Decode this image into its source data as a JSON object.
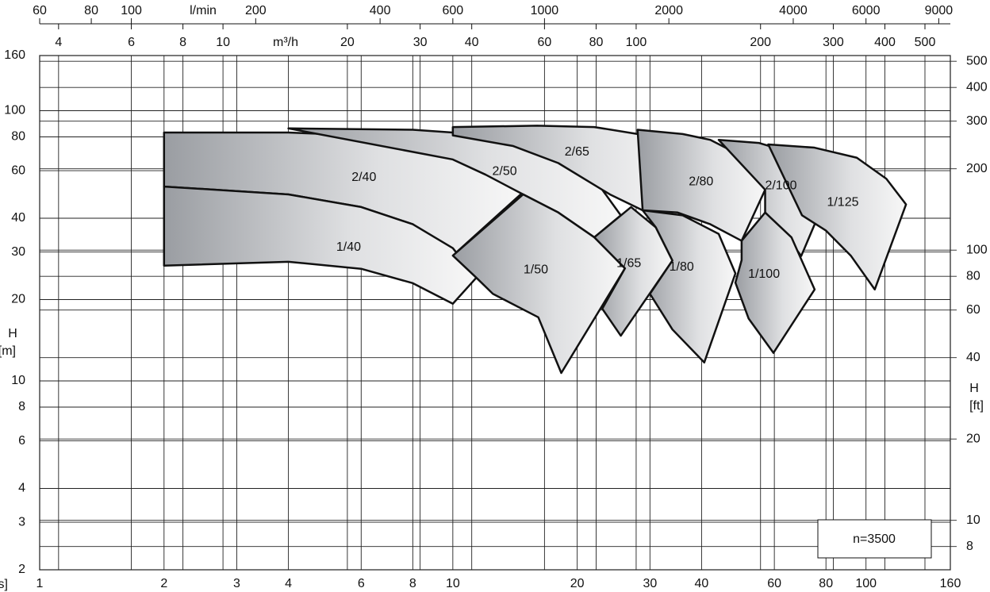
{
  "chart_data": {
    "type": "region",
    "xscale": "log",
    "yscale": "log",
    "xlim": [
      1,
      160
    ],
    "ylim": [
      2,
      160
    ],
    "xticks": [
      1,
      2,
      3,
      4,
      6,
      8,
      10,
      20,
      30,
      40,
      60,
      80,
      100,
      160
    ],
    "yticks": [
      2,
      3,
      4,
      6,
      8,
      10,
      20,
      30,
      40,
      60,
      80,
      100,
      160
    ],
    "x_label": "[l/s]",
    "y_label": "H",
    "y_unit": "[m]",
    "x2_label": "l/min",
    "x2lim": [
      60,
      9600
    ],
    "x2ticks": [
      60,
      80,
      100,
      200,
      400,
      600,
      1000,
      2000,
      4000,
      6000,
      9000
    ],
    "x3_label": "m³/h",
    "x3lim": [
      3.6,
      576
    ],
    "x3ticks": [
      4,
      6,
      8,
      10,
      20,
      30,
      40,
      60,
      80,
      100,
      200,
      300,
      400,
      500
    ],
    "y2_label": "H",
    "y2_unit": "[ft]",
    "y2lim": [
      6.5617,
      524.93
    ],
    "y2ticks": [
      8,
      10,
      20,
      40,
      60,
      80,
      100,
      200,
      300,
      400,
      500
    ],
    "grid": true,
    "annotation": "n=3500",
    "regions": [
      {
        "name": "2/40",
        "x": [
          2,
          4,
          6,
          8,
          10,
          12,
          14.8,
          10,
          8,
          6,
          4,
          2
        ],
        "y": [
          83,
          83,
          81,
          76,
          68,
          60,
          50,
          29.1,
          38,
          44,
          49,
          52.4
        ]
      },
      {
        "name": "1/40",
        "x": [
          2,
          4,
          6,
          8,
          10,
          11.4,
          10,
          8,
          6,
          4,
          2
        ],
        "y": [
          52.4,
          49,
          44,
          38,
          31,
          24.1,
          19.3,
          23,
          26,
          27.6,
          26.7
        ]
      },
      {
        "name": "2/50",
        "x": [
          4,
          8,
          10,
          14,
          18,
          22,
          25.5,
          22,
          18,
          14.8,
          12,
          10
        ],
        "y": [
          86,
          85,
          83,
          78,
          68,
          56,
          41,
          34,
          42,
          49,
          58,
          66
        ]
      },
      {
        "name": "1/50",
        "x": [
          11.4,
          10,
          14.8,
          18,
          22,
          26.1,
          18.3,
          16.1,
          12.5
        ],
        "y": [
          24.1,
          29.1,
          49,
          42,
          34,
          26.1,
          10.7,
          17.2,
          21
        ]
      },
      {
        "name": "2/65",
        "x": [
          10,
          16,
          22,
          28,
          33,
          35.6,
          28.8,
          24,
          18,
          14,
          10
        ],
        "y": [
          87,
          88,
          87,
          82,
          74,
          64,
          42.8,
          49,
          64,
          74,
          81
        ]
      },
      {
        "name": "1/65",
        "x": [
          22,
          27,
          31,
          34,
          25.5,
          23,
          26.1
        ],
        "y": [
          34,
          44,
          37,
          27.9,
          14.7,
          18.5,
          26.1
        ]
      },
      {
        "name": "2/80",
        "x": [
          28,
          36,
          42,
          50,
          57,
          50,
          42,
          35,
          28.8
        ],
        "y": [
          85,
          82,
          78,
          68,
          51,
          33,
          38,
          42,
          42.8
        ]
      },
      {
        "name": "1/80",
        "x": [
          28.8,
          36,
          44,
          48.3,
          40.6,
          34,
          30,
          34,
          31
        ],
        "y": [
          42.8,
          41,
          35,
          25,
          11.7,
          15.5,
          21,
          27.9,
          37
        ]
      },
      {
        "name": "2/100",
        "x": [
          44,
          55,
          66,
          76,
          82.4,
          69.7,
          62,
          57,
          57
        ],
        "y": [
          78,
          76,
          70,
          62,
          53,
          29,
          37,
          42,
          51
        ]
      },
      {
        "name": "1/100",
        "x": [
          50,
          57,
          66,
          75.1,
          59.7,
          52,
          48.3,
          50
        ],
        "y": [
          33,
          42,
          34,
          21.8,
          12.7,
          17,
          23.1,
          28
        ]
      },
      {
        "name": "1/125",
        "x": [
          58,
          75,
          95,
          112,
          125,
          105,
          92,
          80,
          70
        ],
        "y": [
          75,
          73,
          67,
          56,
          45,
          21.8,
          29,
          36,
          41
        ]
      }
    ]
  }
}
